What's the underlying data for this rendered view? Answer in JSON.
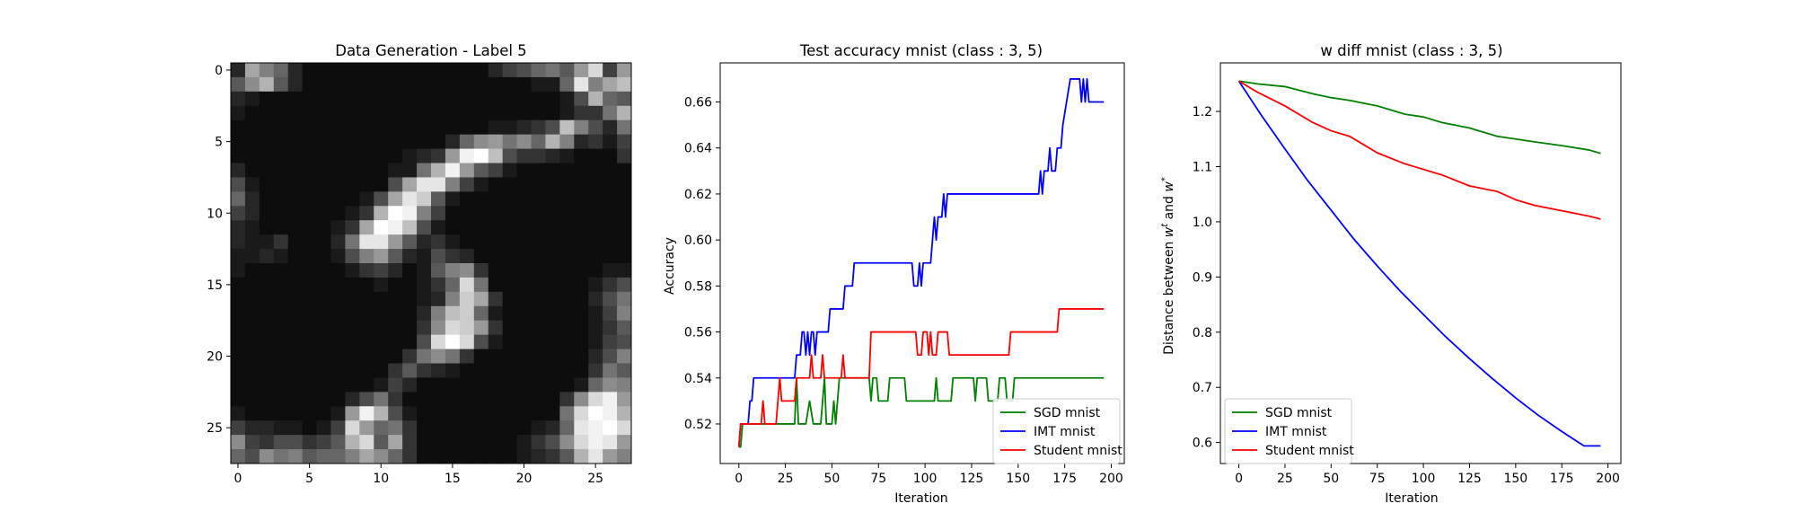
{
  "chart_data": [
    {
      "type": "heatmap",
      "title": "Data Generation - Label 5",
      "xticks": [
        0,
        5,
        10,
        15,
        20,
        25
      ],
      "yticks": [
        0,
        5,
        10,
        15,
        20,
        25
      ],
      "rows": [
        "0.15 0.65 0.5 0.4 0.15 0.05 0.05 0.05 0.05 0.05 0.05 0.05 0.05 0.05 0.05 0.05 0.05 0.05 0.15 0.25 0.3 0.4 0.45 0.35 0.6 0.85 0.25 0.6",
        "0.35 0.55 0.7 0.35 0.15 0.05 0.05 0.05 0.05 0.05 0.05 0.05 0.05 0.05 0.05 0.05 0.05 0.05 0.05 0.05 0.05 0.1 0.1 0.4 0.9 0.5 0.65 0.75",
        "0.15 0.1 0.05 0.05 0.05 0.05 0.05 0.05 0.05 0.05 0.05 0.05 0.05 0.05 0.05 0.05 0.05 0.05 0.05 0.05 0.05 0.05 0.05 0.1 0.3 0.7 0.4 0.35",
        "0.1 0.05 0.05 0.05 0.05 0.05 0.05 0.05 0.05 0.05 0.05 0.05 0.05 0.05 0.05 0.05 0.05 0.05 0.05 0.05 0.05 0.05 0.05 0.1 0.2 0.2 0.45 0.7",
        "0.05 0.05 0.05 0.05 0.05 0.05 0.05 0.05 0.05 0.05 0.05 0.05 0.05 0.05 0.05 0.05 0.05 0.05 0.1 0.1 0.15 0.2 0.3 0.75 0.5 0.3 0.15 0.45",
        "0.05 0.05 0.05 0.05 0.05 0.05 0.05 0.05 0.05 0.05 0.05 0.05 0.05 0.05 0.05 0.15 0.4 0.55 0.6 0.45 0.55 0.4 0.7 0.5 0.15 0.2 0.1 0.25",
        "0.05 0.05 0.05 0.05 0.05 0.05 0.05 0.05 0.05 0.05 0.05 0.05 0.1 0.15 0.2 0.6 0.95 1.0 0.75 0.3 0.2 0.2 0.15 0.1 0.05 0.05 0.05 0.2",
        "0.15 0.05 0.05 0.05 0.05 0.05 0.05 0.05 0.05 0.05 0.05 0.1 0.1 0.45 0.7 0.95 0.6 0.35 0.25 0.1 0.05 0.05 0.05 0.05 0.05 0.05 0.05 0.05",
        "0.3 0.1 0.05 0.05 0.05 0.05 0.05 0.05 0.05 0.05 0.05 0.3 0.65 0.9 0.9 0.5 0.25 0.1 0.05 0.05 0.05 0.05 0.05 0.05 0.05 0.05 0.05 0.05",
        "0.4 0.15 0.05 0.05 0.05 0.05 0.05 0.05 0.05 0.1 0.3 0.65 0.9 0.8 0.35 0.1 0.05 0.05 0.05 0.05 0.05 0.05 0.05 0.05 0.05 0.05 0.05 0.05",
        "0.25 0.15 0.05 0.05 0.05 0.05 0.05 0.05 0.1 0.2 0.7 1.0 0.95 0.5 0.25 0.05 0.05 0.05 0.05 0.05 0.05 0.05 0.05 0.05 0.05 0.05 0.05 0.05",
        "0.15 0.1 0.05 0.05 0.05 0.05 0.05 0.1 0.2 0.65 1.0 0.95 0.75 0.3 0.1 0.05 0.05 0.05 0.05 0.05 0.05 0.05 0.05 0.05 0.05 0.05 0.05 0.05",
        "0.15 0.1 0.1 0.2 0.05 0.05 0.05 0.15 0.45 0.9 0.9 0.6 0.35 0.15 0.2 0.1 0.05 0.05 0.05 0.05 0.05 0.05 0.05 0.05 0.05 0.05 0.05 0.05",
        "0.1 0.1 0.15 0.1 0.05 0.05 0.05 0.1 0.3 0.5 0.6 0.35 0.15 0.1 0.3 0.2 0.15 0.05 0.05 0.05 0.05 0.05 0.05 0.05 0.05 0.05 0.05 0.05",
        "0.1 0.05 0.05 0.05 0.05 0.05 0.05 0.05 0.1 0.2 0.25 0.15 0.05 0.1 0.35 0.5 0.55 0.2 0.05 0.05 0.05 0.05 0.05 0.05 0.05 0.05 0.1 0.1",
        "0.05 0.05 0.05 0.05 0.05 0.05 0.05 0.05 0.05 0.05 0.1 0.05 0.05 0.1 0.2 0.4 0.85 0.45 0.05 0.05 0.05 0.05 0.05 0.05 0.05 0.1 0.2 0.3",
        "0.05 0.05 0.05 0.05 0.05 0.05 0.05 0.05 0.05 0.05 0.05 0.05 0.05 0.1 0.15 0.5 0.8 0.65 0.2 0.05 0.05 0.05 0.05 0.05 0.05 0.15 0.3 0.45",
        "0.05 0.05 0.05 0.05 0.05 0.05 0.05 0.05 0.05 0.05 0.05 0.05 0.05 0.15 0.5 0.75 0.8 0.4 0.1 0.05 0.05 0.05 0.05 0.05 0.05 0.1 0.25 0.5",
        "0.05 0.05 0.05 0.05 0.05 0.05 0.05 0.05 0.05 0.05 0.05 0.05 0.05 0.2 0.55 0.85 0.8 0.6 0.2 0.05 0.05 0.05 0.05 0.05 0.05 0.1 0.2 0.35",
        "0.05 0.05 0.05 0.05 0.05 0.05 0.05 0.05 0.05 0.05 0.05 0.05 0.05 0.3 0.85 1.0 0.85 0.3 0.1 0.05 0.05 0.05 0.05 0.05 0.05 0.1 0.25 0.3",
        "0.05 0.05 0.05 0.05 0.05 0.05 0.05 0.05 0.05 0.05 0.05 0.05 0.2 0.45 0.55 0.45 0.2 0.05 0.05 0.05 0.05 0.05 0.05 0.05 0.05 0.15 0.3 0.5",
        "0.05 0.05 0.05 0.05 0.05 0.05 0.05 0.05 0.05 0.05 0.05 0.2 0.35 0.2 0.15 0.1 0.05 0.05 0.05 0.05 0.05 0.05 0.05 0.05 0.05 0.2 0.45 0.35",
        "0.05 0.05 0.05 0.05 0.05 0.05 0.05 0.05 0.05 0.05 0.1 0.25 0.15 0.05 0.05 0.05 0.05 0.05 0.05 0.05 0.05 0.05 0.05 0.05 0.1 0.4 0.55 0.5",
        "0.05 0.05 0.05 0.05 0.05 0.05 0.05 0.05 0.15 0.3 0.45 0.2 0.05 0.05 0.05 0.05 0.05 0.05 0.05 0.05 0.05 0.05 0.05 0.2 0.55 0.85 0.95 0.6",
        "0.1 0.05 0.05 0.05 0.05 0.05 0.05 0.1 0.6 0.95 0.7 0.3 0.1 0.05 0.05 0.05 0.05 0.05 0.05 0.05 0.05 0.05 0.05 0.45 0.85 1.0 0.95 0.7",
        "0.25 0.15 0.15 0.1 0.1 0.05 0.1 0.25 0.85 0.6 0.4 0.45 0.2 0.05 0.05 0.05 0.05 0.05 0.05 0.05 0.05 0.1 0.15 0.4 0.9 0.95 1.0 0.85",
        "0.55 0.25 0.2 0.3 0.3 0.2 0.25 0.35 0.7 0.85 0.35 0.65 0.2 0.05 0.05 0.05 0.05 0.05 0.05 0.05 0.1 0.2 0.3 0.55 0.85 0.95 0.9 0.6",
        "0.4 0.3 0.55 0.45 0.5 0.35 0.4 0.4 0.5 0.65 0.55 0.4 0.2 0.05 0.05 0.05 0.05 0.05 0.05 0.05 0.1 0.15 0.2 0.35 0.7 0.9 0.6 0.5"
      ]
    },
    {
      "type": "line",
      "title": "Test accuracy mnist (class : 3, 5)",
      "xlabel": "Iteration",
      "ylabel": "Accuracy",
      "xlim": [
        -10,
        207
      ],
      "ylim": [
        0.5028,
        0.677
      ],
      "xticks": [
        0,
        25,
        50,
        75,
        100,
        125,
        150,
        175,
        200
      ],
      "yticks": [
        "0.52",
        "0.54",
        "0.56",
        "0.58",
        "0.60",
        "0.62",
        "0.64",
        "0.66"
      ],
      "legend_position": "lower-right",
      "series": [
        {
          "name": "SGD mnist",
          "color": "#008000",
          "points": [
            [
              0,
              0.51
            ],
            [
              1,
              0.51
            ],
            [
              2,
              0.52
            ],
            [
              30,
              0.52
            ],
            [
              31,
              0.54
            ],
            [
              32,
              0.52
            ],
            [
              36,
              0.52
            ],
            [
              38,
              0.53
            ],
            [
              40,
              0.52
            ],
            [
              44,
              0.52
            ],
            [
              46,
              0.54
            ],
            [
              47,
              0.52
            ],
            [
              50,
              0.52
            ],
            [
              51,
              0.53
            ],
            [
              52,
              0.52
            ],
            [
              53,
              0.53
            ],
            [
              54,
              0.54
            ],
            [
              70,
              0.54
            ],
            [
              71,
              0.53
            ],
            [
              72,
              0.54
            ],
            [
              74,
              0.54
            ],
            [
              75,
              0.53
            ],
            [
              80,
              0.53
            ],
            [
              81,
              0.54
            ],
            [
              89,
              0.54
            ],
            [
              90,
              0.53
            ],
            [
              105,
              0.53
            ],
            [
              106,
              0.54
            ],
            [
              107,
              0.53
            ],
            [
              114,
              0.53
            ],
            [
              115,
              0.54
            ],
            [
              126,
              0.54
            ],
            [
              127,
              0.53
            ],
            [
              128,
              0.54
            ],
            [
              133,
              0.54
            ],
            [
              134,
              0.53
            ],
            [
              139,
              0.53
            ],
            [
              140,
              0.54
            ],
            [
              143,
              0.54
            ],
            [
              144,
              0.53
            ],
            [
              147,
              0.53
            ],
            [
              148,
              0.54
            ],
            [
              196,
              0.54
            ]
          ]
        },
        {
          "name": "IMT mnist",
          "color": "#0000ff",
          "points": [
            [
              0,
              0.51
            ],
            [
              1,
              0.52
            ],
            [
              5,
              0.52
            ],
            [
              6,
              0.53
            ],
            [
              7,
              0.53
            ],
            [
              8,
              0.54
            ],
            [
              30,
              0.54
            ],
            [
              31,
              0.55
            ],
            [
              33,
              0.55
            ],
            [
              34,
              0.56
            ],
            [
              35,
              0.56
            ],
            [
              36,
              0.55
            ],
            [
              37,
              0.56
            ],
            [
              38,
              0.55
            ],
            [
              39,
              0.56
            ],
            [
              40,
              0.56
            ],
            [
              41,
              0.55
            ],
            [
              42,
              0.56
            ],
            [
              48,
              0.56
            ],
            [
              49,
              0.57
            ],
            [
              56,
              0.57
            ],
            [
              57,
              0.58
            ],
            [
              61,
              0.58
            ],
            [
              62,
              0.59
            ],
            [
              93,
              0.59
            ],
            [
              94,
              0.58
            ],
            [
              96,
              0.58
            ],
            [
              97,
              0.59
            ],
            [
              98,
              0.58
            ],
            [
              99,
              0.59
            ],
            [
              103,
              0.59
            ],
            [
              104,
              0.6
            ],
            [
              105,
              0.61
            ],
            [
              106,
              0.6
            ],
            [
              107,
              0.61
            ],
            [
              109,
              0.61
            ],
            [
              110,
              0.62
            ],
            [
              111,
              0.61
            ],
            [
              112,
              0.62
            ],
            [
              161,
              0.62
            ],
            [
              162,
              0.63
            ],
            [
              163,
              0.62
            ],
            [
              164,
              0.63
            ],
            [
              166,
              0.63
            ],
            [
              167,
              0.64
            ],
            [
              168,
              0.63
            ],
            [
              170,
              0.63
            ],
            [
              171,
              0.64
            ],
            [
              173,
              0.64
            ],
            [
              174,
              0.65
            ],
            [
              176,
              0.66
            ],
            [
              178,
              0.67
            ],
            [
              183,
              0.67
            ],
            [
              184,
              0.66
            ],
            [
              185,
              0.67
            ],
            [
              186,
              0.66
            ],
            [
              187,
              0.67
            ],
            [
              188,
              0.66
            ],
            [
              196,
              0.66
            ]
          ]
        },
        {
          "name": "Student mnist",
          "color": "#ff0000",
          "points": [
            [
              0,
              0.51
            ],
            [
              1,
              0.52
            ],
            [
              12,
              0.52
            ],
            [
              13,
              0.53
            ],
            [
              14,
              0.52
            ],
            [
              20,
              0.52
            ],
            [
              21,
              0.53
            ],
            [
              22,
              0.54
            ],
            [
              23,
              0.53
            ],
            [
              30,
              0.53
            ],
            [
              31,
              0.54
            ],
            [
              38,
              0.54
            ],
            [
              39,
              0.55
            ],
            [
              40,
              0.54
            ],
            [
              44,
              0.54
            ],
            [
              45,
              0.55
            ],
            [
              46,
              0.54
            ],
            [
              55,
              0.54
            ],
            [
              56,
              0.55
            ],
            [
              57,
              0.54
            ],
            [
              70,
              0.54
            ],
            [
              71,
              0.56
            ],
            [
              95,
              0.56
            ],
            [
              96,
              0.55
            ],
            [
              98,
              0.55
            ],
            [
              99,
              0.56
            ],
            [
              101,
              0.56
            ],
            [
              102,
              0.55
            ],
            [
              103,
              0.56
            ],
            [
              104,
              0.55
            ],
            [
              106,
              0.55
            ],
            [
              107,
              0.56
            ],
            [
              112,
              0.56
            ],
            [
              113,
              0.55
            ],
            [
              145,
              0.55
            ],
            [
              146,
              0.56
            ],
            [
              171,
              0.56
            ],
            [
              172,
              0.57
            ],
            [
              196,
              0.57
            ]
          ]
        }
      ]
    },
    {
      "type": "line",
      "title": "w diff mnist (class : 3, 5)",
      "xlabel": "Iteration",
      "ylabel": "Distance between w^t and w^*",
      "xlim": [
        -10,
        207
      ],
      "ylim": [
        0.562,
        1.288
      ],
      "xticks": [
        0,
        25,
        50,
        75,
        100,
        125,
        150,
        175,
        200
      ],
      "yticks": [
        "0.6",
        "0.7",
        "0.8",
        "0.9",
        "1.0",
        "1.1",
        "1.2"
      ],
      "legend_position": "lower-left",
      "series": [
        {
          "name": "SGD mnist",
          "color": "#008000",
          "points": [
            [
              0,
              1.255
            ],
            [
              10,
              1.25
            ],
            [
              25,
              1.245
            ],
            [
              40,
              1.232
            ],
            [
              50,
              1.225
            ],
            [
              60,
              1.22
            ],
            [
              75,
              1.21
            ],
            [
              90,
              1.195
            ],
            [
              100,
              1.19
            ],
            [
              110,
              1.18
            ],
            [
              125,
              1.17
            ],
            [
              140,
              1.155
            ],
            [
              150,
              1.15
            ],
            [
              160,
              1.145
            ],
            [
              175,
              1.138
            ],
            [
              190,
              1.13
            ],
            [
              196,
              1.124
            ]
          ]
        },
        {
          "name": "IMT mnist",
          "color": "#0000ff",
          "points": [
            [
              0,
              1.255
            ],
            [
              12,
              1.194
            ],
            [
              25,
              1.132
            ],
            [
              37,
              1.076
            ],
            [
              50,
              1.021
            ],
            [
              62,
              0.97
            ],
            [
              75,
              0.92
            ],
            [
              87,
              0.876
            ],
            [
              100,
              0.832
            ],
            [
              112,
              0.792
            ],
            [
              125,
              0.752
            ],
            [
              137,
              0.717
            ],
            [
              150,
              0.681
            ],
            [
              162,
              0.65
            ],
            [
              175,
              0.62
            ],
            [
              187,
              0.594
            ],
            [
              196,
              0.594
            ]
          ]
        },
        {
          "name": "Student mnist",
          "color": "#ff0000",
          "points": [
            [
              0,
              1.255
            ],
            [
              10,
              1.235
            ],
            [
              25,
              1.21
            ],
            [
              40,
              1.18
            ],
            [
              50,
              1.165
            ],
            [
              60,
              1.155
            ],
            [
              75,
              1.125
            ],
            [
              90,
              1.105
            ],
            [
              100,
              1.095
            ],
            [
              110,
              1.085
            ],
            [
              125,
              1.065
            ],
            [
              140,
              1.055
            ],
            [
              150,
              1.04
            ],
            [
              160,
              1.03
            ],
            [
              175,
              1.02
            ],
            [
              190,
              1.01
            ],
            [
              196,
              1.005
            ]
          ]
        }
      ]
    }
  ]
}
